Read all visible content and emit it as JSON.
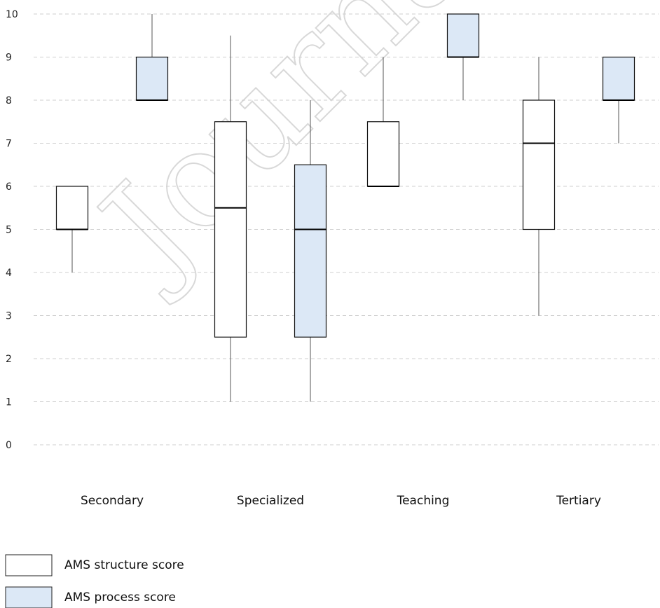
{
  "chart_data": {
    "type": "boxplot",
    "categories": [
      "Secondary",
      "Specialized",
      "Teaching",
      "Tertiary"
    ],
    "ylim": [
      0,
      10
    ],
    "yticks": [
      0,
      1,
      2,
      3,
      4,
      5,
      6,
      7,
      8,
      9,
      10
    ],
    "grid": true,
    "legend_position": "bottom-left",
    "series": [
      {
        "name": "AMS structure score",
        "color": "#ffffff",
        "boxes": [
          {
            "min": 4,
            "q1": 5,
            "median": 5,
            "q3": 6,
            "max": 6
          },
          {
            "min": 1,
            "q1": 2.5,
            "median": 5.5,
            "q3": 7.5,
            "max": 9.5
          },
          {
            "min": 6,
            "q1": 6,
            "median": 6,
            "q3": 7.5,
            "max": 9
          },
          {
            "min": 3,
            "q1": 5,
            "median": 7,
            "q3": 8,
            "max": 9
          }
        ]
      },
      {
        "name": "AMS process score",
        "color": "#dce8f6",
        "boxes": [
          {
            "min": 8,
            "q1": 8,
            "median": 8,
            "q3": 9,
            "max": 10
          },
          {
            "min": 1,
            "q1": 2.5,
            "median": 5,
            "q3": 6.5,
            "max": 8
          },
          {
            "min": 8,
            "q1": 9,
            "median": 9,
            "q3": 10,
            "max": 10
          },
          {
            "min": 7,
            "q1": 8,
            "median": 8,
            "q3": 9,
            "max": 9
          }
        ]
      }
    ]
  },
  "watermark": "Journal"
}
